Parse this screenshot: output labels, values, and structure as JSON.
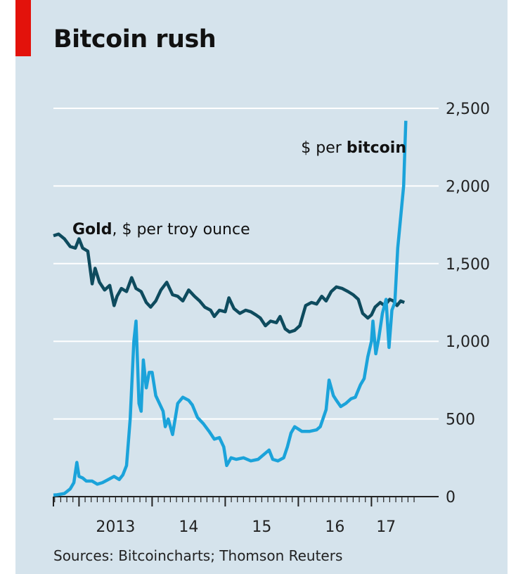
{
  "title": "Bitcoin rush",
  "source": "Sources: Bitcoincharts; Thomson Reuters",
  "colors": {
    "background": "#d5e3ec",
    "accent": "#e3120b",
    "bitcoin": "#1ba3da",
    "gold": "#0e4b5e",
    "gridline": "#ffffff"
  },
  "chart_data": {
    "type": "line",
    "ylim": [
      0,
      2500
    ],
    "xlim": [
      2012.65,
      2017.65
    ],
    "grid": true,
    "y_axis_side": "right",
    "y_ticks": [
      {
        "value": 0,
        "label": "0"
      },
      {
        "value": 500,
        "label": "500"
      },
      {
        "value": 1000,
        "label": "1,000"
      },
      {
        "value": 1500,
        "label": "1,500"
      },
      {
        "value": 2000,
        "label": "2,000"
      },
      {
        "value": 2500,
        "label": "2,500"
      }
    ],
    "x_ticks": [
      {
        "value": 2013.5,
        "label": "2013"
      },
      {
        "value": 2014.5,
        "label": "14"
      },
      {
        "value": 2015.5,
        "label": "15"
      },
      {
        "value": 2016.5,
        "label": "16"
      },
      {
        "value": 2017.2,
        "label": "17"
      }
    ],
    "year_boundaries": [
      2013,
      2014,
      2015,
      2016,
      2017
    ],
    "series": [
      {
        "name": "Gold, $ per troy ounce",
        "label_bold": "Gold",
        "label_rest": ", $ per troy ounce",
        "color": "#0e4b5e",
        "points": [
          [
            2012.65,
            1680
          ],
          [
            2012.72,
            1690
          ],
          [
            2012.8,
            1660
          ],
          [
            2012.88,
            1610
          ],
          [
            2012.95,
            1600
          ],
          [
            2013.0,
            1660
          ],
          [
            2013.05,
            1600
          ],
          [
            2013.12,
            1580
          ],
          [
            2013.18,
            1370
          ],
          [
            2013.22,
            1470
          ],
          [
            2013.28,
            1380
          ],
          [
            2013.35,
            1330
          ],
          [
            2013.42,
            1360
          ],
          [
            2013.48,
            1230
          ],
          [
            2013.52,
            1290
          ],
          [
            2013.58,
            1340
          ],
          [
            2013.65,
            1320
          ],
          [
            2013.72,
            1410
          ],
          [
            2013.78,
            1340
          ],
          [
            2013.85,
            1320
          ],
          [
            2013.92,
            1250
          ],
          [
            2013.98,
            1220
          ],
          [
            2014.05,
            1260
          ],
          [
            2014.12,
            1330
          ],
          [
            2014.2,
            1380
          ],
          [
            2014.28,
            1300
          ],
          [
            2014.35,
            1290
          ],
          [
            2014.42,
            1260
          ],
          [
            2014.5,
            1330
          ],
          [
            2014.58,
            1290
          ],
          [
            2014.65,
            1260
          ],
          [
            2014.72,
            1220
          ],
          [
            2014.8,
            1200
          ],
          [
            2014.85,
            1160
          ],
          [
            2014.92,
            1200
          ],
          [
            2015.0,
            1190
          ],
          [
            2015.05,
            1280
          ],
          [
            2015.12,
            1210
          ],
          [
            2015.2,
            1180
          ],
          [
            2015.28,
            1200
          ],
          [
            2015.35,
            1190
          ],
          [
            2015.42,
            1170
          ],
          [
            2015.48,
            1150
          ],
          [
            2015.55,
            1100
          ],
          [
            2015.62,
            1130
          ],
          [
            2015.7,
            1120
          ],
          [
            2015.75,
            1160
          ],
          [
            2015.82,
            1080
          ],
          [
            2015.88,
            1060
          ],
          [
            2015.95,
            1070
          ],
          [
            2016.02,
            1100
          ],
          [
            2016.1,
            1230
          ],
          [
            2016.18,
            1250
          ],
          [
            2016.25,
            1240
          ],
          [
            2016.32,
            1290
          ],
          [
            2016.38,
            1260
          ],
          [
            2016.45,
            1320
          ],
          [
            2016.52,
            1350
          ],
          [
            2016.6,
            1340
          ],
          [
            2016.68,
            1320
          ],
          [
            2016.75,
            1300
          ],
          [
            2016.82,
            1270
          ],
          [
            2016.88,
            1180
          ],
          [
            2016.95,
            1150
          ],
          [
            2017.0,
            1170
          ],
          [
            2017.05,
            1220
          ],
          [
            2017.12,
            1250
          ],
          [
            2017.18,
            1230
          ],
          [
            2017.25,
            1270
          ],
          [
            2017.3,
            1260
          ],
          [
            2017.35,
            1230
          ],
          [
            2017.4,
            1260
          ],
          [
            2017.45,
            1250
          ]
        ]
      },
      {
        "name": "$ per bitcoin",
        "label_rest": "$ per ",
        "label_bold": "bitcoin",
        "color": "#1ba3da",
        "points": [
          [
            2012.65,
            10
          ],
          [
            2012.7,
            12
          ],
          [
            2012.8,
            20
          ],
          [
            2012.88,
            50
          ],
          [
            2012.93,
            90
          ],
          [
            2012.97,
            220
          ],
          [
            2013.0,
            130
          ],
          [
            2013.05,
            120
          ],
          [
            2013.1,
            100
          ],
          [
            2013.18,
            100
          ],
          [
            2013.25,
            80
          ],
          [
            2013.32,
            90
          ],
          [
            2013.4,
            110
          ],
          [
            2013.48,
            130
          ],
          [
            2013.55,
            110
          ],
          [
            2013.6,
            140
          ],
          [
            2013.65,
            200
          ],
          [
            2013.7,
            500
          ],
          [
            2013.75,
            1000
          ],
          [
            2013.78,
            1130
          ],
          [
            2013.82,
            600
          ],
          [
            2013.85,
            550
          ],
          [
            2013.88,
            880
          ],
          [
            2013.92,
            700
          ],
          [
            2013.96,
            800
          ],
          [
            2014.0,
            800
          ],
          [
            2014.05,
            650
          ],
          [
            2014.1,
            600
          ],
          [
            2014.15,
            550
          ],
          [
            2014.18,
            450
          ],
          [
            2014.22,
            500
          ],
          [
            2014.28,
            400
          ],
          [
            2014.35,
            600
          ],
          [
            2014.42,
            640
          ],
          [
            2014.5,
            620
          ],
          [
            2014.55,
            590
          ],
          [
            2014.62,
            510
          ],
          [
            2014.7,
            470
          ],
          [
            2014.78,
            420
          ],
          [
            2014.85,
            370
          ],
          [
            2014.92,
            380
          ],
          [
            2014.98,
            320
          ],
          [
            2015.02,
            200
          ],
          [
            2015.08,
            250
          ],
          [
            2015.15,
            240
          ],
          [
            2015.25,
            250
          ],
          [
            2015.35,
            230
          ],
          [
            2015.45,
            240
          ],
          [
            2015.55,
            280
          ],
          [
            2015.6,
            300
          ],
          [
            2015.65,
            240
          ],
          [
            2015.72,
            230
          ],
          [
            2015.8,
            250
          ],
          [
            2015.85,
            320
          ],
          [
            2015.9,
            410
          ],
          [
            2015.95,
            450
          ],
          [
            2016.05,
            420
          ],
          [
            2016.15,
            420
          ],
          [
            2016.25,
            430
          ],
          [
            2016.3,
            450
          ],
          [
            2016.38,
            560
          ],
          [
            2016.42,
            750
          ],
          [
            2016.48,
            650
          ],
          [
            2016.52,
            620
          ],
          [
            2016.58,
            580
          ],
          [
            2016.65,
            600
          ],
          [
            2016.72,
            630
          ],
          [
            2016.78,
            640
          ],
          [
            2016.85,
            720
          ],
          [
            2016.9,
            760
          ],
          [
            2016.95,
            900
          ],
          [
            2017.0,
            1000
          ],
          [
            2017.02,
            1130
          ],
          [
            2017.06,
            920
          ],
          [
            2017.1,
            1020
          ],
          [
            2017.15,
            1180
          ],
          [
            2017.2,
            1270
          ],
          [
            2017.24,
            960
          ],
          [
            2017.28,
            1200
          ],
          [
            2017.32,
            1250
          ],
          [
            2017.36,
            1600
          ],
          [
            2017.4,
            1800
          ],
          [
            2017.44,
            2000
          ],
          [
            2017.47,
            2420
          ]
        ]
      }
    ]
  }
}
